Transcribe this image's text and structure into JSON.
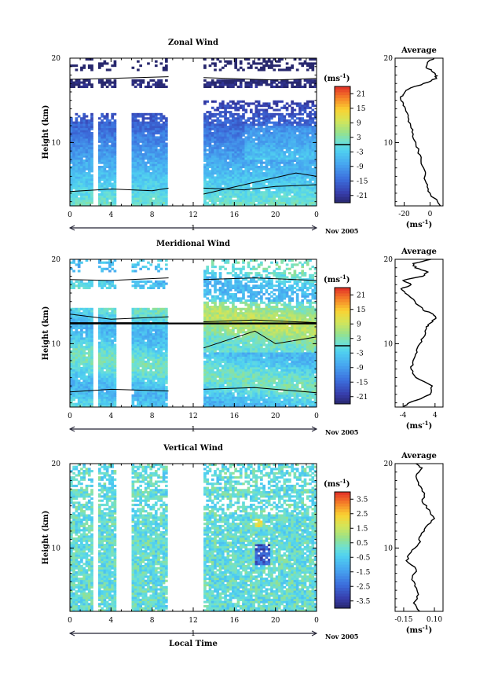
{
  "chart_data": [
    {
      "type": "heatmap",
      "title": "Zonal Wind",
      "ylabel": "Height (km)",
      "ylim": [
        2.5,
        20
      ],
      "yticks": [
        "20",
        "10"
      ],
      "xlim": [
        0,
        24
      ],
      "xticks": [
        "0",
        "4",
        "8",
        "12",
        "16",
        "20",
        "0"
      ],
      "date_label": "1",
      "month_label": "Nov 2005",
      "colorbar": {
        "unit": "(ms",
        "unit_sup": "-1",
        "unit_close": ")",
        "ticks": [
          "21",
          "15",
          "9",
          "3",
          "-3",
          "-9",
          "-15",
          "-21"
        ],
        "range": [
          -24,
          24
        ]
      },
      "data_gaps_hours": [
        [
          2.3,
          2.7
        ],
        [
          4.6,
          5.9
        ],
        [
          9.6,
          12.9
        ]
      ],
      "profile": {
        "title": "Average",
        "xlabel": "(ms",
        "xlabel_sup": "-1",
        "xlabel_close": ")",
        "xticks": [
          "-20",
          "0"
        ],
        "xlim": [
          -27,
          10
        ],
        "yticks": [
          "20",
          "10"
        ],
        "height_km": [
          2.5,
          4,
          5,
          6,
          7,
          8,
          9,
          10,
          11,
          12,
          13,
          14,
          14.8,
          15.3,
          15.8,
          16.3,
          17,
          17.6,
          18,
          18.5,
          19,
          19.5,
          20
        ],
        "values": [
          8,
          0,
          -2,
          -4,
          -5,
          -7,
          -9,
          -11,
          -13,
          -15,
          -17,
          -19,
          -21,
          -23,
          -20,
          -17,
          -5,
          5,
          4,
          1,
          -3,
          -2,
          3
        ]
      }
    },
    {
      "type": "heatmap",
      "title": "Meridional Wind",
      "ylabel": "Height (km)",
      "ylim": [
        2.5,
        20
      ],
      "yticks": [
        "20",
        "10"
      ],
      "xlim": [
        0,
        24
      ],
      "xticks": [
        "0",
        "4",
        "8",
        "12",
        "16",
        "20",
        "0"
      ],
      "date_label": "1",
      "month_label": "Nov 2005",
      "colorbar": {
        "unit": "(ms",
        "unit_sup": "-1",
        "unit_close": ")",
        "ticks": [
          "21",
          "15",
          "9",
          "3",
          "-3",
          "-9",
          "-15",
          "-21"
        ],
        "range": [
          -24,
          24
        ]
      },
      "data_gaps_hours": [
        [
          2.3,
          2.7
        ],
        [
          4.6,
          5.9
        ],
        [
          9.6,
          12.9
        ]
      ],
      "profile": {
        "title": "Average",
        "xlabel": "(ms",
        "xlabel_sup": "-1",
        "xlabel_close": ")",
        "xticks": [
          "-4",
          "4"
        ],
        "xlim": [
          -6,
          6
        ],
        "yticks": [
          "20",
          "10"
        ],
        "height_km": [
          2.5,
          3,
          3.5,
          4,
          5,
          6,
          7,
          8,
          9,
          10,
          11,
          12,
          12.5,
          13,
          13.5,
          14,
          15,
          16,
          16.5,
          17,
          17.5,
          18,
          18.5,
          19,
          19.5,
          20
        ],
        "values": [
          -3.8,
          -2.5,
          0.5,
          2.8,
          3.3,
          -0.8,
          -2,
          -1.5,
          -0.5,
          0.2,
          1.5,
          1.8,
          3,
          4.2,
          3.5,
          1,
          -1,
          -3.5,
          -4.5,
          -2,
          -4,
          1,
          2.2,
          -1,
          -1.5,
          3
        ]
      }
    },
    {
      "type": "heatmap",
      "title": "Vertical Wind",
      "ylabel": "Height (km)",
      "xlabel": "Local Time",
      "ylim": [
        2.5,
        20
      ],
      "yticks": [
        "20",
        "10"
      ],
      "xlim": [
        0,
        24
      ],
      "xticks": [
        "0",
        "4",
        "8",
        "12",
        "16",
        "20",
        "0"
      ],
      "date_label": "1",
      "month_label": "Nov 2005",
      "colorbar": {
        "unit": "(ms",
        "unit_sup": "-1",
        "unit_close": ")",
        "ticks": [
          "3.5",
          "2.5",
          "1.5",
          "0.5",
          "-0.5",
          "-1.5",
          "-2.5",
          "-3.5"
        ],
        "range": [
          -4,
          4
        ]
      },
      "data_gaps_hours": [
        [
          2.3,
          2.7
        ],
        [
          4.6,
          5.9
        ],
        [
          9.6,
          12.9
        ]
      ],
      "profile": {
        "title": "Average",
        "xlabel": "(ms",
        "xlabel_sup": "-1",
        "xlabel_close": ")",
        "xticks": [
          "-0.15",
          "0.10"
        ],
        "xlim": [
          -0.22,
          0.17
        ],
        "yticks": [
          "20",
          "10"
        ],
        "height_km": [
          2.5,
          3.5,
          4.5,
          5.5,
          6.5,
          7.5,
          8.5,
          9.5,
          10.5,
          11.5,
          12.5,
          13.5,
          14.5,
          15.5,
          16.5,
          17.5,
          18.5,
          19.5,
          20
        ],
        "values": [
          -0.02,
          -0.07,
          -0.03,
          -0.06,
          -0.08,
          -0.05,
          -0.13,
          -0.09,
          -0.03,
          -0.01,
          0.03,
          0.1,
          0.06,
          0.0,
          0.02,
          -0.03,
          -0.05,
          0.0,
          -0.05
        ]
      }
    }
  ]
}
